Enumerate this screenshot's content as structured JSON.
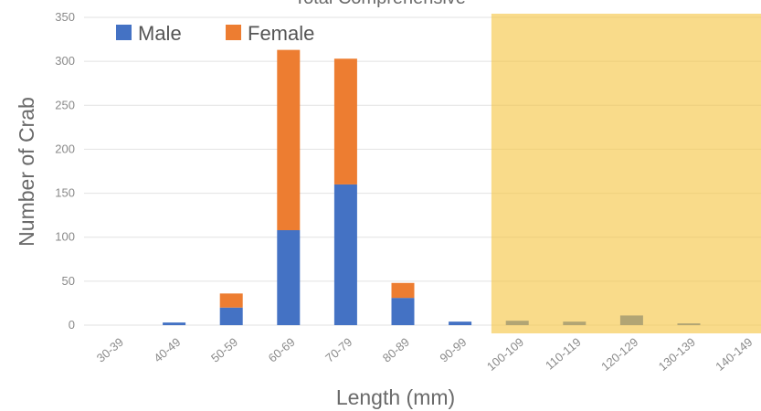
{
  "chart_data": {
    "type": "bar",
    "stacked": true,
    "title": "Total Comprehensive",
    "xlabel": "Length (mm)",
    "ylabel": "Number of Crab",
    "ylim": [
      0,
      350
    ],
    "yticks": [
      0,
      50,
      100,
      150,
      200,
      250,
      300,
      350
    ],
    "grid": true,
    "legend_position": "top-left",
    "categories": [
      "30-39",
      "40-49",
      "50-59",
      "60-69",
      "70-79",
      "80-89",
      "90-99",
      "100-109",
      "110-119",
      "120-129",
      "130-139",
      "140-149"
    ],
    "series": [
      {
        "name": "Male",
        "color": "#4472C4",
        "values": [
          0,
          3,
          20,
          108,
          160,
          31,
          4,
          5,
          4,
          11,
          2,
          0
        ]
      },
      {
        "name": "Female",
        "color": "#ED7D31",
        "values": [
          0,
          0,
          16,
          205,
          143,
          17,
          0,
          0,
          0,
          0,
          0,
          0
        ]
      }
    ],
    "highlight": {
      "from_category": "100-109",
      "to_category": "140-149",
      "color": "#F5C542"
    }
  }
}
